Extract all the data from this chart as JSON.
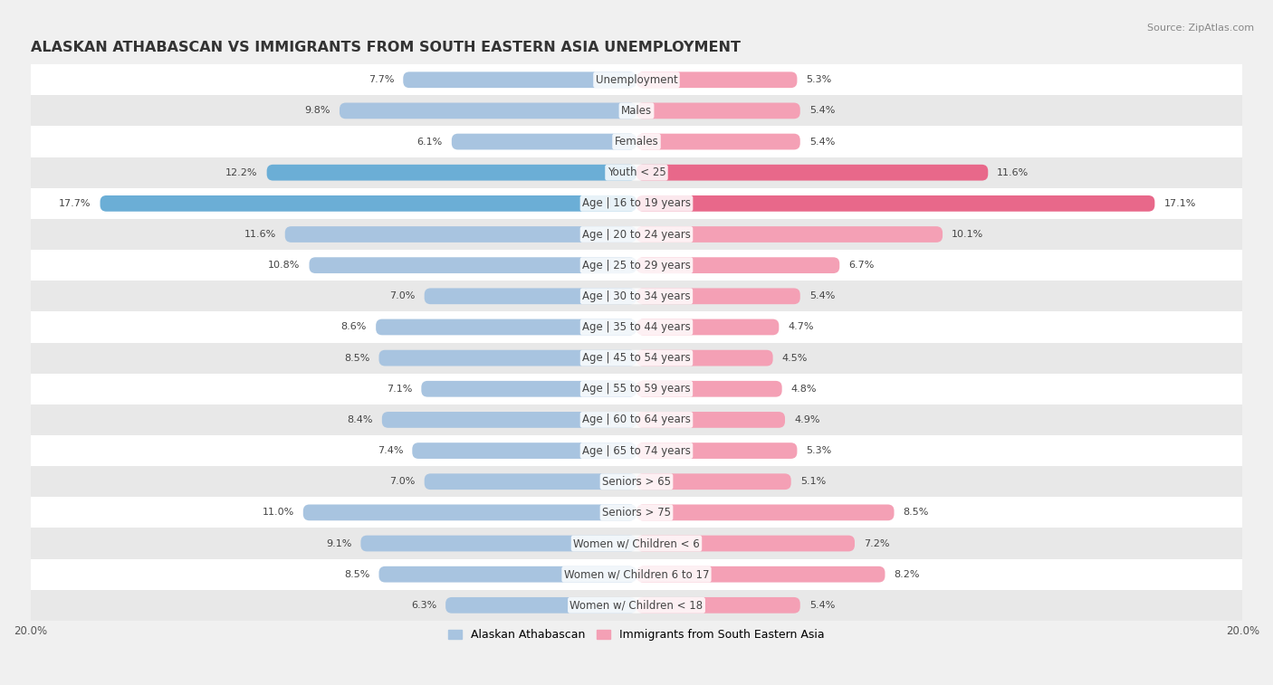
{
  "title": "ALASKAN ATHABASCAN VS IMMIGRANTS FROM SOUTH EASTERN ASIA UNEMPLOYMENT",
  "source": "Source: ZipAtlas.com",
  "categories": [
    "Unemployment",
    "Males",
    "Females",
    "Youth < 25",
    "Age | 16 to 19 years",
    "Age | 20 to 24 years",
    "Age | 25 to 29 years",
    "Age | 30 to 34 years",
    "Age | 35 to 44 years",
    "Age | 45 to 54 years",
    "Age | 55 to 59 years",
    "Age | 60 to 64 years",
    "Age | 65 to 74 years",
    "Seniors > 65",
    "Seniors > 75",
    "Women w/ Children < 6",
    "Women w/ Children 6 to 17",
    "Women w/ Children < 18"
  ],
  "left_values": [
    7.7,
    9.8,
    6.1,
    12.2,
    17.7,
    11.6,
    10.8,
    7.0,
    8.6,
    8.5,
    7.1,
    8.4,
    7.4,
    7.0,
    11.0,
    9.1,
    8.5,
    6.3
  ],
  "right_values": [
    5.3,
    5.4,
    5.4,
    11.6,
    17.1,
    10.1,
    6.7,
    5.4,
    4.7,
    4.5,
    4.8,
    4.9,
    5.3,
    5.1,
    8.5,
    7.2,
    8.2,
    5.4
  ],
  "left_color_normal": "#a8c4e0",
  "right_color_normal": "#f4a0b5",
  "left_color_highlight": "#6baed6",
  "right_color_highlight": "#e8688a",
  "highlight_rows": [
    3,
    4
  ],
  "max_value": 20.0,
  "bar_height": 0.52,
  "background_color": "#f0f0f0",
  "row_bg_even": "#ffffff",
  "row_bg_odd": "#e8e8e8",
  "legend_left": "Alaskan Athabascan",
  "legend_right": "Immigrants from South Eastern Asia",
  "title_fontsize": 11.5,
  "label_fontsize": 8.5,
  "value_fontsize": 8.0,
  "axis_label_fontsize": 8.5
}
